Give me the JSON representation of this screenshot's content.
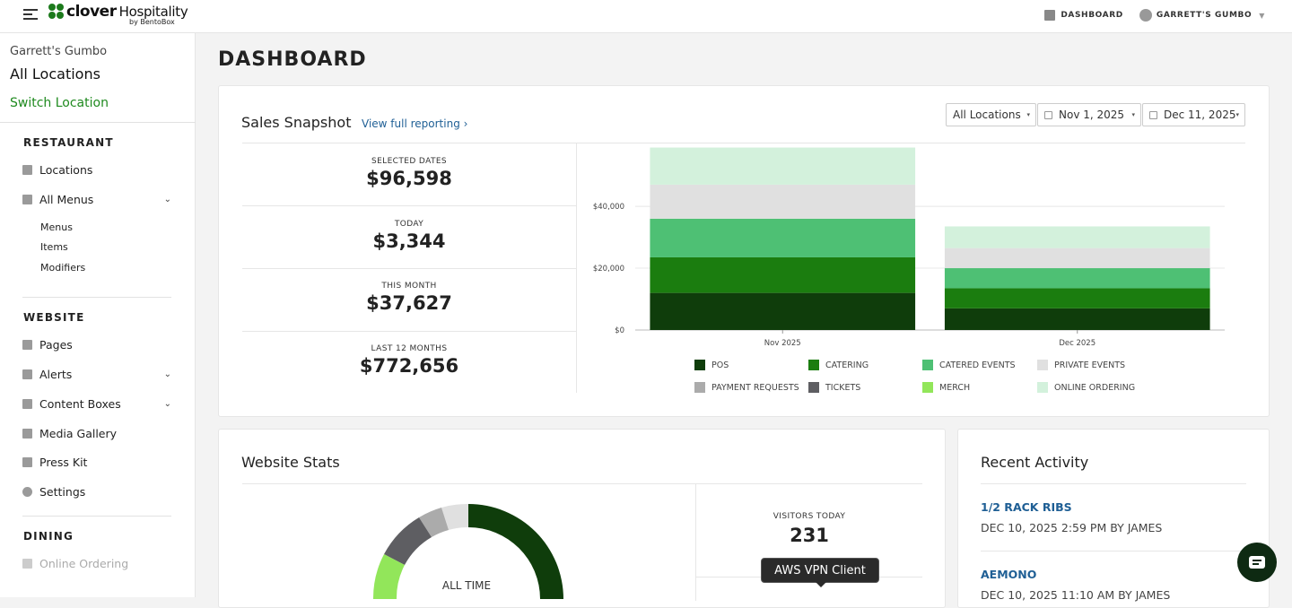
{
  "topbar": {
    "brand": "clover",
    "brand_suffix": "Hospitality",
    "brand_by": "by BentoBox",
    "dashboard_link": "DASHBOARD",
    "account_name": "GARRETT'S GUMBO"
  },
  "sidebar": {
    "restaurant_name": "Garrett's Gumbo",
    "current_location": "All Locations",
    "switch_location": "Switch Location",
    "sections": {
      "restaurant": "RESTAURANT",
      "website": "WEBSITE",
      "dining": "DINING"
    },
    "restaurant_items": [
      "Locations",
      "All Menus"
    ],
    "menu_subitems": [
      "Menus",
      "Items",
      "Modifiers"
    ],
    "website_items": [
      "Pages",
      "Alerts",
      "Content Boxes",
      "Media Gallery",
      "Press Kit",
      "Settings"
    ],
    "dining_items": [
      "Online Ordering"
    ]
  },
  "page": {
    "title": "DASHBOARD"
  },
  "sales": {
    "title": "Sales Snapshot",
    "report_link": "View full reporting",
    "location_filter": "All Locations",
    "start_date": "Nov 1, 2025",
    "end_date": "Dec 11, 2025",
    "kpis": [
      {
        "label": "SELECTED DATES",
        "value": "$96,598"
      },
      {
        "label": "TODAY",
        "value": "$3,344"
      },
      {
        "label": "THIS MONTH",
        "value": "$37,627"
      },
      {
        "label": "LAST 12 MONTHS",
        "value": "$772,656"
      }
    ]
  },
  "chart_data": {
    "type": "bar",
    "stacked": true,
    "categories": [
      "Nov 2025",
      "Dec 2025"
    ],
    "ylim": [
      0,
      58000
    ],
    "yticks": [
      "$0",
      "$20,000",
      "$40,000"
    ],
    "ytick_values": [
      0,
      20000,
      40000
    ],
    "legend_position": "bottom",
    "series": [
      {
        "name": "POS",
        "color": "#0f3d0b",
        "values": [
          12000,
          7000
        ]
      },
      {
        "name": "CATERING",
        "color": "#1b7d0f",
        "values": [
          11500,
          6500
        ]
      },
      {
        "name": "CATERED EVENTS",
        "color": "#4ec074",
        "values": [
          12500,
          6500
        ]
      },
      {
        "name": "PRIVATE EVENTS",
        "color": "#e0e0e0",
        "values": [
          11000,
          6500
        ]
      },
      {
        "name": "PAYMENT REQUESTS",
        "color": "#ababab",
        "values": [
          0,
          0
        ]
      },
      {
        "name": "TICKETS",
        "color": "#5e5e62",
        "values": [
          0,
          0
        ]
      },
      {
        "name": "MERCH",
        "color": "#92e65a",
        "values": [
          0,
          0
        ]
      },
      {
        "name": "ONLINE ORDERING",
        "color": "#d3f1dc",
        "values": [
          12000,
          7000
        ]
      }
    ]
  },
  "website_stats": {
    "title": "Website Stats",
    "donut_label": "ALL TIME",
    "visitors_label": "VISITORS TODAY",
    "visitors_value": "231"
  },
  "recent_activity": {
    "title": "Recent Activity",
    "items": [
      {
        "title": "1/2 RACK RIBS",
        "meta": "DEC 10, 2025 2:59 PM BY JAMES"
      },
      {
        "title": "AEMONO",
        "meta": "DEC 10, 2025 11:10 AM BY JAMES"
      }
    ]
  },
  "tooltip": {
    "text": "AWS VPN Client"
  }
}
